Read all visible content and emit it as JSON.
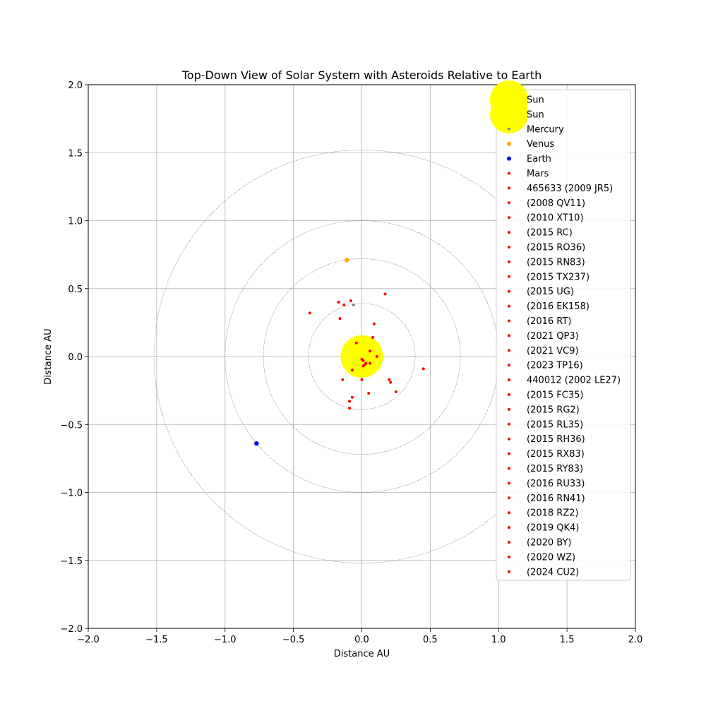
{
  "chart_data": {
    "type": "scatter",
    "title": "Top-Down View of Solar System with Asteroids Relative to Earth",
    "xlabel": "Distance AU",
    "ylabel": "Distance AU",
    "xlim": [
      -2.0,
      2.0
    ],
    "ylim": [
      -2.0,
      2.0
    ],
    "xticks": [
      -2.0,
      -1.5,
      -1.0,
      -0.5,
      0.0,
      0.5,
      1.0,
      1.5,
      2.0
    ],
    "yticks": [
      -2.0,
      -1.5,
      -1.0,
      -0.5,
      0.0,
      0.5,
      1.0,
      1.5,
      2.0
    ],
    "xtick_labels": [
      "−2.0",
      "−1.5",
      "−1.0",
      "−0.5",
      "0.0",
      "0.5",
      "1.0",
      "1.5",
      "2.0"
    ],
    "ytick_labels": [
      "−2.0",
      "−1.5",
      "−1.0",
      "−0.5",
      "0.0",
      "0.5",
      "1.0",
      "1.5",
      "2.0"
    ],
    "grid": true,
    "legend_position": "top-right",
    "orbits": [
      {
        "cx": 0.0,
        "cy": 0.0,
        "r": 0.39
      },
      {
        "cx": 0.0,
        "cy": 0.0,
        "r": 0.72
      },
      {
        "cx": 0.0,
        "cy": 0.0,
        "r": 1.0
      },
      {
        "cx": 0.0,
        "cy": 0.0,
        "r": 1.52
      }
    ],
    "colors": {
      "sun": "#ffff00",
      "mercury": "#808080",
      "venus": "#ffa500",
      "earth": "#0000ff",
      "mars": "#ff0000",
      "grid": "#b0b0b0",
      "orbit": "#808080"
    },
    "series": [
      {
        "name": "Sun",
        "color": "#ffff00",
        "kind": "sun",
        "x": [
          0.0
        ],
        "y": [
          0.0
        ]
      },
      {
        "name": "Sun",
        "color": "#ffff00",
        "kind": "sun",
        "x": [
          0.0
        ],
        "y": [
          0.0
        ]
      },
      {
        "name": "Mercury",
        "color": "#808080",
        "kind": "small",
        "x": [
          -0.06
        ],
        "y": [
          0.38
        ]
      },
      {
        "name": "Venus",
        "color": "#ffa500",
        "kind": "planet",
        "x": [
          -0.11
        ],
        "y": [
          0.71
        ]
      },
      {
        "name": "Earth",
        "color": "#0000ff",
        "kind": "planet",
        "x": [
          -0.77
        ],
        "y": [
          -0.64
        ]
      },
      {
        "name": "Mars",
        "color": "#ff0000",
        "kind": "small",
        "x": [
          0.01
        ],
        "y": [
          -0.07
        ]
      },
      {
        "name": "465633 (2009 JR5)",
        "color": "#ff0000",
        "kind": "small",
        "x": [
          -0.17
        ],
        "y": [
          0.4
        ]
      },
      {
        "name": "(2008 QV11)",
        "color": "#ff0000",
        "kind": "small",
        "x": [
          -0.13
        ],
        "y": [
          0.38
        ]
      },
      {
        "name": "(2010 XT10)",
        "color": "#ff0000",
        "kind": "small",
        "x": [
          -0.08
        ],
        "y": [
          0.41
        ]
      },
      {
        "name": "(2015 RC)",
        "color": "#ff0000",
        "kind": "small",
        "x": [
          -0.16
        ],
        "y": [
          0.28
        ]
      },
      {
        "name": "(2015 RO36)",
        "color": "#ff0000",
        "kind": "small",
        "x": [
          0.08
        ],
        "y": [
          0.14
        ]
      },
      {
        "name": "(2015 RN83)",
        "color": "#ff0000",
        "kind": "small",
        "x": [
          -0.04
        ],
        "y": [
          0.1
        ]
      },
      {
        "name": "(2015 TX237)",
        "color": "#ff0000",
        "kind": "small",
        "x": [
          0.06
        ],
        "y": [
          0.04
        ]
      },
      {
        "name": "(2015 UG)",
        "color": "#ff0000",
        "kind": "small",
        "x": [
          0.11
        ],
        "y": [
          0.0
        ]
      },
      {
        "name": "(2016 EK158)",
        "color": "#ff0000",
        "kind": "small",
        "x": [
          0.0
        ],
        "y": [
          -0.02
        ]
      },
      {
        "name": "(2016 RT)",
        "color": "#ff0000",
        "kind": "small",
        "x": [
          0.01
        ],
        "y": [
          -0.03
        ]
      },
      {
        "name": "(2021 QP3)",
        "color": "#ff0000",
        "kind": "small",
        "x": [
          0.03
        ],
        "y": [
          -0.05
        ]
      },
      {
        "name": "(2021 VC9)",
        "color": "#ff0000",
        "kind": "small",
        "x": [
          0.06
        ],
        "y": [
          -0.05
        ]
      },
      {
        "name": "(2023 TP16)",
        "color": "#ff0000",
        "kind": "small",
        "x": [
          -0.07
        ],
        "y": [
          -0.1
        ]
      },
      {
        "name": "440012 (2002 LE27)",
        "color": "#ff0000",
        "kind": "small",
        "x": [
          0.0
        ],
        "y": [
          -0.17
        ]
      },
      {
        "name": "(2015 FC35)",
        "color": "#ff0000",
        "kind": "small",
        "x": [
          -0.14
        ],
        "y": [
          -0.17
        ]
      },
      {
        "name": "(2015 RG2)",
        "color": "#ff0000",
        "kind": "small",
        "x": [
          0.2
        ],
        "y": [
          -0.17
        ]
      },
      {
        "name": "(2015 RL35)",
        "color": "#ff0000",
        "kind": "small",
        "x": [
          0.21
        ],
        "y": [
          -0.19
        ]
      },
      {
        "name": "(2015 RH36)",
        "color": "#ff0000",
        "kind": "small",
        "x": [
          0.25
        ],
        "y": [
          -0.26
        ]
      },
      {
        "name": "(2015 RX83)",
        "color": "#ff0000",
        "kind": "small",
        "x": [
          0.05
        ],
        "y": [
          -0.27
        ]
      },
      {
        "name": "(2015 RY83)",
        "color": "#ff0000",
        "kind": "small",
        "x": [
          -0.07
        ],
        "y": [
          -0.3
        ]
      },
      {
        "name": "(2016 RU33)",
        "color": "#ff0000",
        "kind": "small",
        "x": [
          -0.09
        ],
        "y": [
          -0.33
        ]
      },
      {
        "name": "(2016 RN41)",
        "color": "#ff0000",
        "kind": "small",
        "x": [
          -0.09
        ],
        "y": [
          -0.38
        ]
      },
      {
        "name": "(2018 RZ2)",
        "color": "#ff0000",
        "kind": "small",
        "x": [
          0.45
        ],
        "y": [
          -0.09
        ]
      },
      {
        "name": "(2019 QK4)",
        "color": "#ff0000",
        "kind": "small",
        "x": [
          0.17
        ],
        "y": [
          0.46
        ]
      },
      {
        "name": "(2020 BY)",
        "color": "#ff0000",
        "kind": "small",
        "x": [
          -0.38
        ],
        "y": [
          0.32
        ]
      },
      {
        "name": "(2020 WZ)",
        "color": "#ff0000",
        "kind": "small",
        "x": [
          0.09
        ],
        "y": [
          0.24
        ]
      },
      {
        "name": "(2024 CU2)",
        "color": "#ff0000",
        "kind": "small",
        "x": [
          0.02
        ],
        "y": [
          -0.06
        ]
      }
    ]
  }
}
